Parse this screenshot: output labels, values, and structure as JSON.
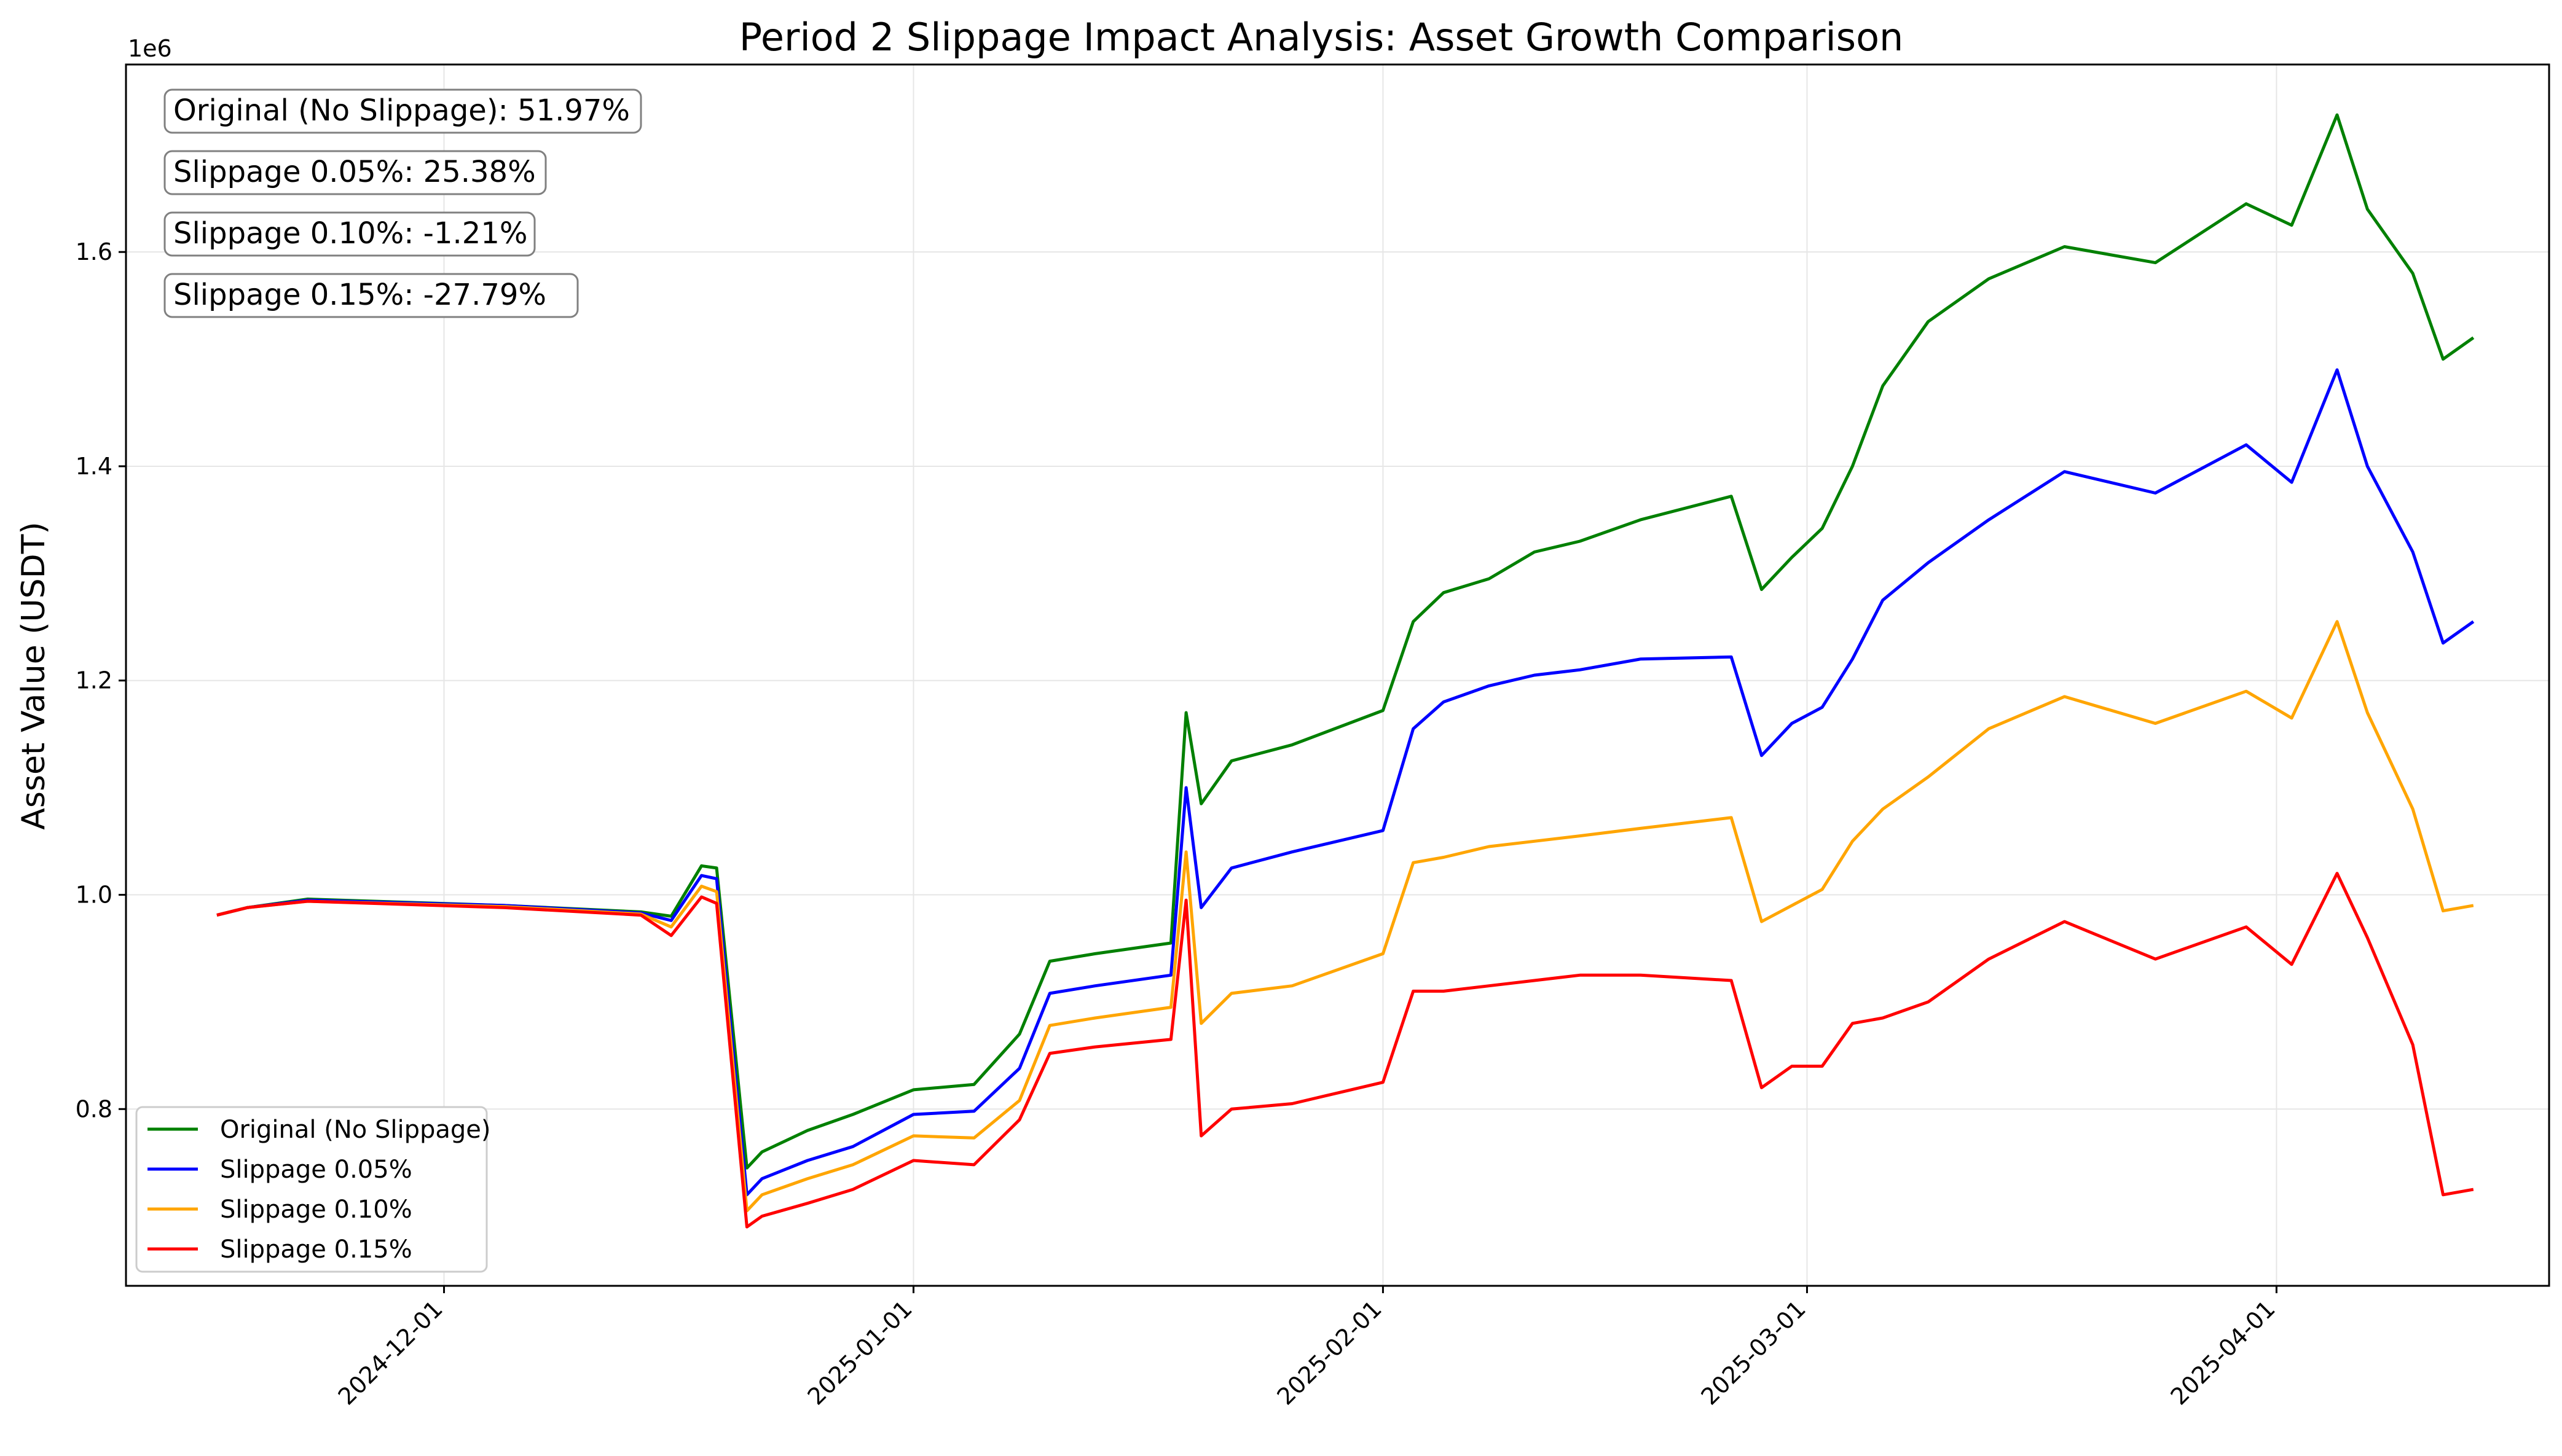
{
  "chart_data": {
    "type": "line",
    "title": "Period 2 Slippage Impact Analysis: Asset Growth Comparison",
    "xlabel": "",
    "ylabel": "Asset Value (USDT)",
    "y_offset_label": "1e6",
    "xlim": [
      "2024-11-10",
      "2025-04-19"
    ],
    "ylim": [
      0.635,
      1.775
    ],
    "grid": true,
    "legend_position": "lower-left",
    "x_ticks": [
      "2024-12-01",
      "2025-01-01",
      "2025-02-01",
      "2025-03-01",
      "2025-04-01"
    ],
    "y_ticks": [
      0.8,
      1.0,
      1.2,
      1.4,
      1.6
    ],
    "y_tick_labels": [
      "0.8",
      "1.0",
      "1.2",
      "1.4",
      "1.6"
    ],
    "annotations": [
      "Original (No Slippage): 51.97%",
      "Slippage 0.05%: 25.38%",
      "Slippage 0.10%: -1.21%",
      "Slippage 0.15%: -27.79%"
    ],
    "x": [
      "2024-11-16",
      "2024-11-18",
      "2024-11-22",
      "2024-12-05",
      "2024-12-14",
      "2024-12-16",
      "2024-12-18",
      "2024-12-19",
      "2024-12-21",
      "2024-12-22",
      "2024-12-25",
      "2024-12-28",
      "2025-01-01",
      "2025-01-05",
      "2025-01-08",
      "2025-01-10",
      "2025-01-13",
      "2025-01-18",
      "2025-01-19",
      "2025-01-20",
      "2025-01-22",
      "2025-01-26",
      "2025-02-01",
      "2025-02-03",
      "2025-02-05",
      "2025-02-08",
      "2025-02-11",
      "2025-02-14",
      "2025-02-18",
      "2025-02-24",
      "2025-02-26",
      "2025-02-28",
      "2025-03-02",
      "2025-03-04",
      "2025-03-06",
      "2025-03-09",
      "2025-03-13",
      "2025-03-18",
      "2025-03-24",
      "2025-03-30",
      "2025-04-02",
      "2025-04-05",
      "2025-04-07",
      "2025-04-10",
      "2025-04-12",
      "2025-04-14"
    ],
    "series": [
      {
        "name": "Original (No Slippage)",
        "color": "#008000",
        "values": [
          0.981,
          0.988,
          0.996,
          0.99,
          0.984,
          0.98,
          1.027,
          1.025,
          0.745,
          0.76,
          0.78,
          0.795,
          0.818,
          0.823,
          0.87,
          0.938,
          0.945,
          0.955,
          1.17,
          1.085,
          1.125,
          1.14,
          1.172,
          1.255,
          1.282,
          1.295,
          1.32,
          1.33,
          1.35,
          1.372,
          1.285,
          1.315,
          1.342,
          1.4,
          1.475,
          1.535,
          1.575,
          1.605,
          1.59,
          1.645,
          1.625,
          1.728,
          1.64,
          1.58,
          1.5,
          1.52
        ]
      },
      {
        "name": "Slippage 0.05%",
        "color": "#0000ff",
        "values": [
          0.981,
          0.988,
          0.995,
          0.99,
          0.983,
          0.976,
          1.018,
          1.015,
          0.72,
          0.735,
          0.752,
          0.765,
          0.795,
          0.798,
          0.838,
          0.908,
          0.915,
          0.925,
          1.1,
          0.988,
          1.025,
          1.04,
          1.06,
          1.155,
          1.18,
          1.195,
          1.205,
          1.21,
          1.22,
          1.222,
          1.13,
          1.16,
          1.175,
          1.22,
          1.275,
          1.31,
          1.35,
          1.395,
          1.375,
          1.42,
          1.385,
          1.49,
          1.4,
          1.32,
          1.235,
          1.255
        ]
      },
      {
        "name": "Slippage 0.10%",
        "color": "#ffa500",
        "values": [
          0.981,
          0.988,
          0.994,
          0.989,
          0.982,
          0.97,
          1.008,
          1.003,
          0.705,
          0.72,
          0.735,
          0.748,
          0.775,
          0.773,
          0.808,
          0.878,
          0.885,
          0.895,
          1.04,
          0.88,
          0.908,
          0.915,
          0.945,
          1.03,
          1.035,
          1.045,
          1.05,
          1.055,
          1.062,
          1.072,
          0.975,
          0.99,
          1.005,
          1.05,
          1.08,
          1.11,
          1.155,
          1.185,
          1.16,
          1.19,
          1.165,
          1.255,
          1.17,
          1.08,
          0.985,
          0.99
        ]
      },
      {
        "name": "Slippage 0.15%",
        "color": "#ff0000",
        "values": [
          0.981,
          0.988,
          0.994,
          0.988,
          0.981,
          0.962,
          0.998,
          0.992,
          0.69,
          0.7,
          0.712,
          0.725,
          0.752,
          0.748,
          0.79,
          0.852,
          0.858,
          0.865,
          0.995,
          0.775,
          0.8,
          0.805,
          0.825,
          0.91,
          0.91,
          0.915,
          0.92,
          0.925,
          0.925,
          0.92,
          0.82,
          0.84,
          0.84,
          0.88,
          0.885,
          0.9,
          0.94,
          0.975,
          0.94,
          0.97,
          0.935,
          1.02,
          0.96,
          0.86,
          0.72,
          0.725
        ]
      }
    ]
  }
}
